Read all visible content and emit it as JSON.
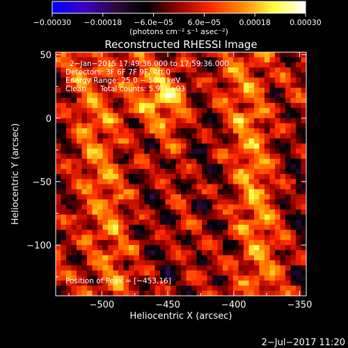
{
  "chart_data": {
    "type": "heatmap",
    "title": "Reconstructed RHESSI Image",
    "xlabel": "Heliocentric X (arcsec)",
    "ylabel": "Heliocentric Y (arcsec)",
    "xlim": [
      -535,
      -345
    ],
    "ylim": [
      -140,
      52
    ],
    "x_ticks": [
      -500,
      -450,
      -400,
      -350
    ],
    "x_tick_labels": [
      "−500",
      "−450",
      "−400",
      "−350"
    ],
    "y_ticks": [
      50,
      0,
      -50,
      -100
    ],
    "y_tick_labels": [
      "50",
      "0",
      "−50",
      "−100"
    ],
    "colorbar": {
      "range": [
        -0.0003,
        0.0003
      ],
      "tick_values": [
        -0.0003,
        -0.00018,
        -6e-05,
        6e-05,
        0.00018,
        0.0003
      ],
      "tick_labels": [
        "−0.00030",
        "−0.00018",
        "−6.0e−05",
        "6.0e−05",
        "0.00018",
        "0.00030"
      ],
      "unit_label": "(photons cm⁻² s⁻¹ asec⁻²)",
      "colors": [
        "#0000ff",
        "#3a00c8",
        "#2a0a3a",
        "#000000",
        "#9a0000",
        "#ff2a00",
        "#ff8a00",
        "#ffff40",
        "#ffffff"
      ]
    },
    "annotations": [
      "2−Jan−2015 17:49:36.000 to 17:59:36.000",
      "Detectors: 3F 6F 7F 9F, Att 0",
      "Energy Range: 25.0 − 50.0 keV",
      "Clean      Total counts: 5.91E+03"
    ],
    "peak_label": "Position of Peak = [−453,16]",
    "peak": [
      -453,
      16
    ],
    "grid": false
  },
  "footer": {
    "timestamp": "2−Jul−2017 11:20"
  }
}
